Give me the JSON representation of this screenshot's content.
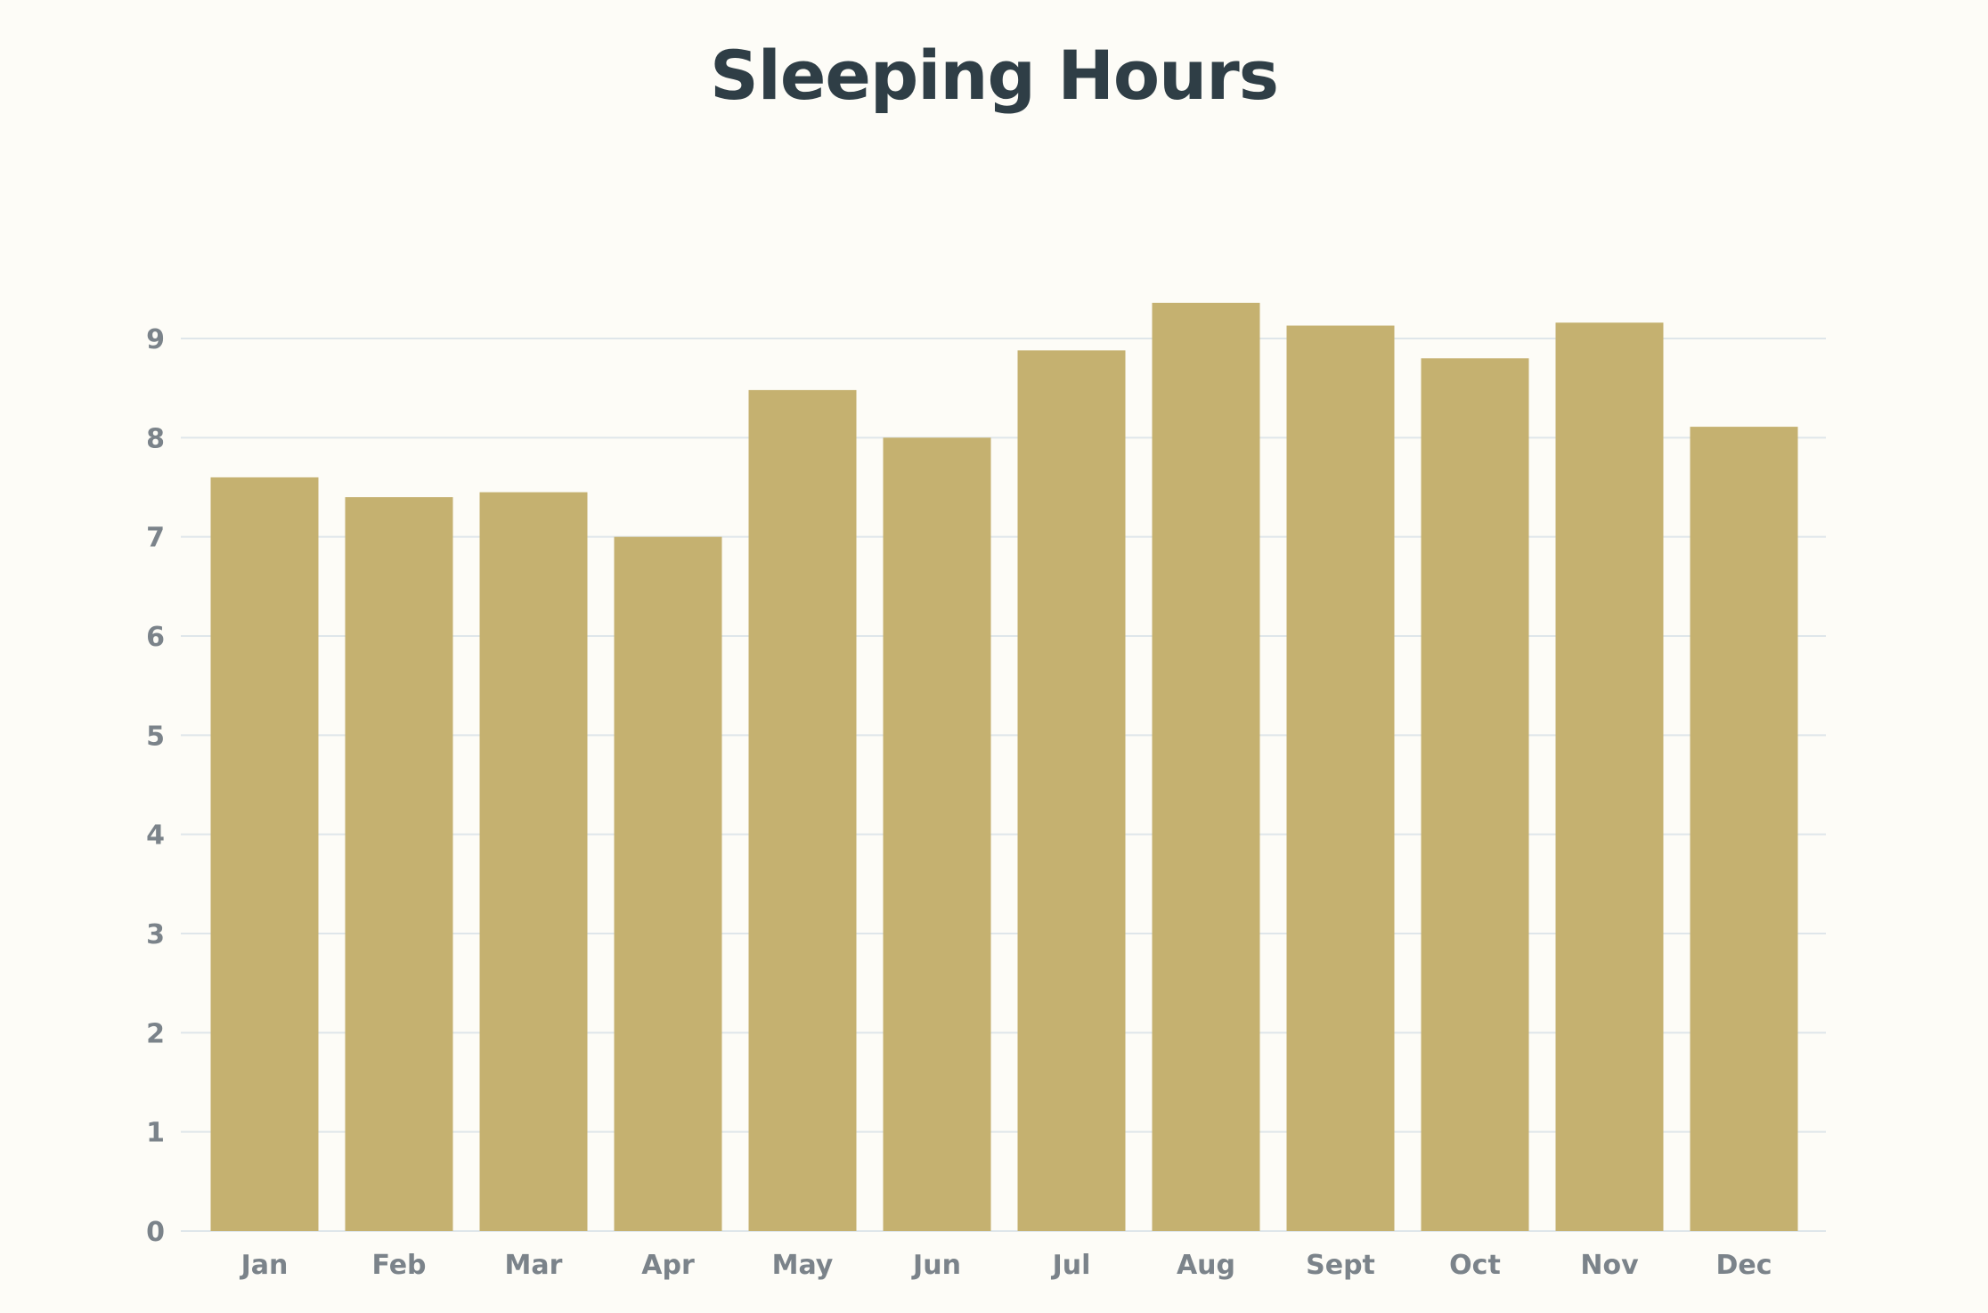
{
  "chart_data": {
    "type": "bar",
    "title": "Sleeping Hours",
    "xlabel": "",
    "ylabel": "",
    "categories": [
      "Jan",
      "Feb",
      "Mar",
      "Apr",
      "May",
      "Jun",
      "Jul",
      "Aug",
      "Sept",
      "Oct",
      "Nov",
      "Dec"
    ],
    "values": [
      7.6,
      7.4,
      7.45,
      7.0,
      8.48,
      8.0,
      8.88,
      9.36,
      9.13,
      8.8,
      9.16,
      8.11
    ],
    "ylim": [
      0,
      9
    ],
    "yticks": [
      0,
      1,
      2,
      3,
      4,
      5,
      6,
      7,
      8,
      9
    ],
    "grid": true,
    "legend": "none",
    "colors": {
      "bar": "#c5b170",
      "grid": "#dfe6ea",
      "title": "#2f3e46",
      "tick_label": "#7b838a",
      "background": "#fdfcf7"
    }
  }
}
